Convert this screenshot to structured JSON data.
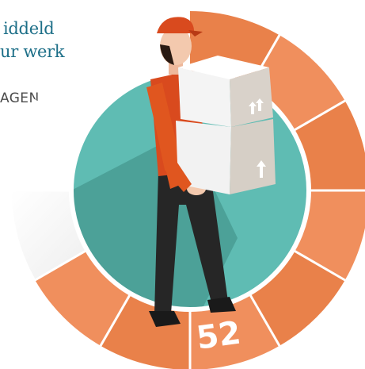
{
  "header": {
    "line1": "iddeld",
    "line2": "ur werk",
    "subtitle": "AGEN"
  },
  "gauge": {
    "value_label": "52",
    "segments_total": 12,
    "segments_filled": 8
  },
  "colors": {
    "accent_orange": "#e9814a",
    "orange_light": "#f08f5d",
    "teal": "#5fbcb3",
    "teal_dark": "#4a9d95",
    "grey_track": "#e6e6e6",
    "title_blue": "#1d6f88",
    "jacket": "#d94a1e",
    "box": "#f2f2f2",
    "box_shade": "#d9d2ca"
  }
}
